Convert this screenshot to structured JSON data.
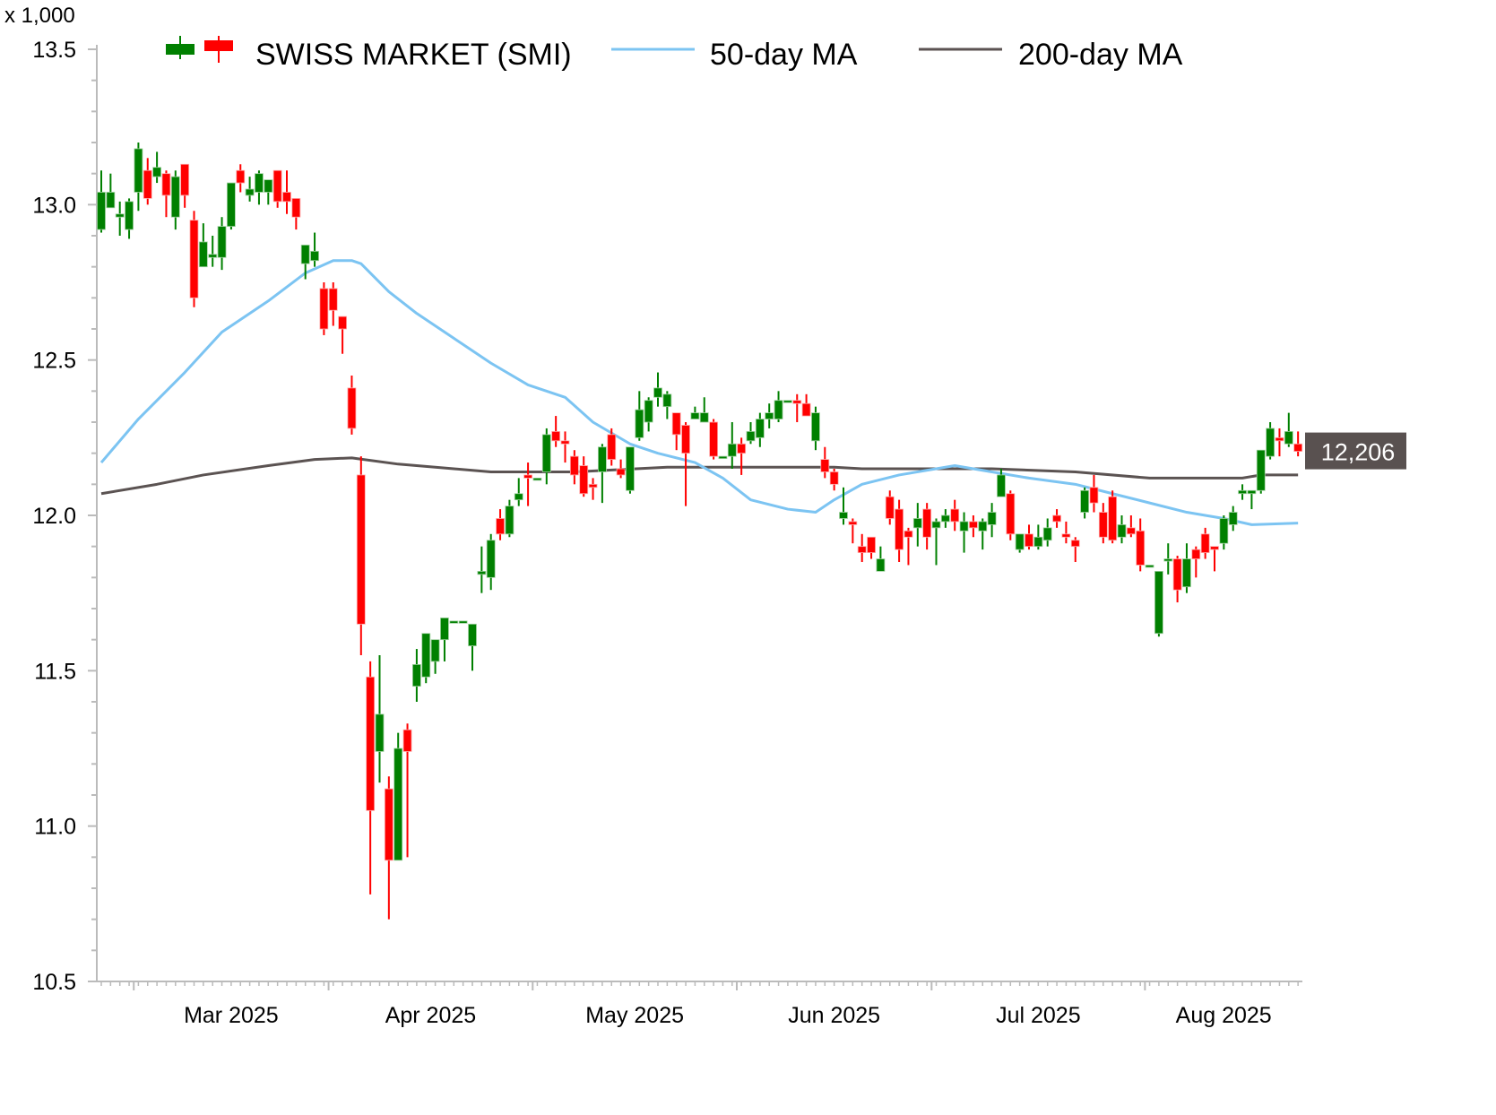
{
  "chart_data": {
    "type": "candlestick",
    "y_multiplier_label": "x 1,000",
    "ylim": [
      10.5,
      13.5
    ],
    "y_ticks": [
      "10.5",
      "11.0",
      "11.5",
      "12.0",
      "12.5",
      "13.0",
      "13.5"
    ],
    "x_tick_labels": [
      "Mar 2025",
      "Apr 2025",
      "May 2025",
      "Jun 2025",
      "Jul 2025",
      "Aug 2025"
    ],
    "grid": false,
    "legend_position": "top",
    "legend": {
      "candles": "SWISS MARKET (SMI)",
      "ma50": "50-day MA",
      "ma200": "200-day MA"
    },
    "last_price_label": "12,206",
    "colors": {
      "up": "#008000",
      "down": "#ff0000",
      "ma50": "#7cc4f2",
      "ma200": "#5b5352",
      "price_label_bg": "#595150"
    },
    "columns": [
      "date",
      "open",
      "high",
      "low",
      "close"
    ],
    "candles": [
      [
        "2025-02-25",
        12.92,
        13.11,
        12.91,
        13.04
      ],
      [
        "2025-02-26",
        12.99,
        13.1,
        12.99,
        13.04
      ],
      [
        "2025-02-27",
        12.96,
        13.01,
        12.9,
        12.97
      ],
      [
        "2025-02-28",
        12.92,
        13.02,
        12.89,
        13.01
      ],
      [
        "2025-03-03",
        13.04,
        13.2,
        12.98,
        13.18
      ],
      [
        "2025-03-04",
        13.11,
        13.15,
        13.0,
        13.02
      ],
      [
        "2025-03-05",
        13.09,
        13.17,
        13.07,
        13.12
      ],
      [
        "2025-03-06",
        13.1,
        13.11,
        12.96,
        13.03
      ],
      [
        "2025-03-07",
        12.96,
        13.11,
        12.92,
        13.09
      ],
      [
        "2025-03-10",
        13.13,
        13.13,
        12.99,
        13.03
      ],
      [
        "2025-03-11",
        12.95,
        12.98,
        12.67,
        12.7
      ],
      [
        "2025-03-12",
        12.8,
        12.94,
        12.8,
        12.88
      ],
      [
        "2025-03-13",
        12.83,
        12.9,
        12.8,
        12.84
      ],
      [
        "2025-03-14",
        12.83,
        12.96,
        12.79,
        12.93
      ],
      [
        "2025-03-17",
        12.93,
        13.07,
        12.92,
        13.07
      ],
      [
        "2025-03-18",
        13.11,
        13.13,
        13.04,
        13.07
      ],
      [
        "2025-03-19",
        13.03,
        13.09,
        13.01,
        13.05
      ],
      [
        "2025-03-20",
        13.04,
        13.11,
        13.0,
        13.1
      ],
      [
        "2025-03-21",
        13.04,
        13.08,
        13.0,
        13.08
      ],
      [
        "2025-03-24",
        13.11,
        13.11,
        12.99,
        13.01
      ],
      [
        "2025-03-25",
        13.04,
        13.11,
        12.97,
        13.01
      ],
      [
        "2025-03-26",
        13.02,
        13.02,
        12.92,
        12.96
      ],
      [
        "2025-03-27",
        12.81,
        12.87,
        12.76,
        12.87
      ],
      [
        "2025-03-28",
        12.82,
        12.91,
        12.8,
        12.85
      ],
      [
        "2025-03-31",
        12.73,
        12.75,
        12.58,
        12.6
      ],
      [
        "2025-04-01",
        12.73,
        12.75,
        12.61,
        12.66
      ],
      [
        "2025-04-02",
        12.64,
        12.64,
        12.52,
        12.6
      ],
      [
        "2025-04-03",
        12.41,
        12.45,
        12.26,
        12.28
      ],
      [
        "2025-04-04",
        12.13,
        12.19,
        11.55,
        11.65
      ],
      [
        "2025-04-07",
        11.48,
        11.53,
        10.78,
        11.05
      ],
      [
        "2025-04-08",
        11.24,
        11.55,
        11.14,
        11.36
      ],
      [
        "2025-04-09",
        11.12,
        11.16,
        10.7,
        10.89
      ],
      [
        "2025-04-10",
        10.89,
        11.3,
        10.89,
        11.25
      ],
      [
        "2025-04-11",
        11.31,
        11.33,
        10.9,
        11.24
      ],
      [
        "2025-04-14",
        11.45,
        11.57,
        11.4,
        11.52
      ],
      [
        "2025-04-15",
        11.48,
        11.62,
        11.46,
        11.62
      ],
      [
        "2025-04-16",
        11.53,
        11.6,
        11.49,
        11.6
      ],
      [
        "2025-04-17",
        11.6,
        11.67,
        11.53,
        11.67
      ],
      [
        "2025-04-18",
        11.66,
        11.66,
        11.66,
        11.66
      ],
      [
        "2025-04-21",
        11.66,
        11.66,
        11.66,
        11.66
      ],
      [
        "2025-04-22",
        11.58,
        11.65,
        11.5,
        11.65
      ],
      [
        "2025-04-23",
        11.81,
        11.9,
        11.75,
        11.82
      ],
      [
        "2025-04-24",
        11.8,
        11.94,
        11.76,
        11.92
      ],
      [
        "2025-04-25",
        11.99,
        12.02,
        11.92,
        11.94
      ],
      [
        "2025-04-28",
        11.94,
        12.05,
        11.93,
        12.03
      ],
      [
        "2025-04-29",
        12.05,
        12.12,
        12.03,
        12.07
      ],
      [
        "2025-04-30",
        12.13,
        12.17,
        12.03,
        12.12
      ],
      [
        "2025-05-01",
        12.12,
        12.12,
        12.12,
        12.12
      ],
      [
        "2025-05-02",
        12.14,
        12.28,
        12.1,
        12.26
      ],
      [
        "2025-05-05",
        12.27,
        12.32,
        12.22,
        12.24
      ],
      [
        "2025-05-06",
        12.24,
        12.27,
        12.17,
        12.23
      ],
      [
        "2025-05-07",
        12.19,
        12.21,
        12.1,
        12.13
      ],
      [
        "2025-05-08",
        12.16,
        12.19,
        12.06,
        12.07
      ],
      [
        "2025-05-09",
        12.1,
        12.12,
        12.05,
        12.09
      ],
      [
        "2025-05-12",
        12.14,
        12.23,
        12.04,
        12.22
      ],
      [
        "2025-05-13",
        12.26,
        12.28,
        12.16,
        12.18
      ],
      [
        "2025-05-14",
        12.15,
        12.18,
        12.12,
        12.13
      ],
      [
        "2025-05-15",
        12.08,
        12.22,
        12.07,
        12.22
      ],
      [
        "2025-05-16",
        12.25,
        12.4,
        12.24,
        12.34
      ],
      [
        "2025-05-19",
        12.3,
        12.38,
        12.27,
        12.37
      ],
      [
        "2025-05-20",
        12.38,
        12.46,
        12.35,
        12.41
      ],
      [
        "2025-05-21",
        12.35,
        12.4,
        12.31,
        12.39
      ],
      [
        "2025-05-22",
        12.33,
        12.33,
        12.21,
        12.26
      ],
      [
        "2025-05-23",
        12.29,
        12.3,
        12.03,
        12.2
      ],
      [
        "2025-05-26",
        12.31,
        12.35,
        12.31,
        12.33
      ],
      [
        "2025-05-27",
        12.3,
        12.38,
        12.3,
        12.33
      ],
      [
        "2025-05-28",
        12.3,
        12.31,
        12.18,
        12.19
      ],
      [
        "2025-05-29",
        12.19,
        12.19,
        12.19,
        12.19
      ],
      [
        "2025-05-30",
        12.19,
        12.3,
        12.15,
        12.23
      ],
      [
        "2025-06-02",
        12.23,
        12.25,
        12.13,
        12.2
      ],
      [
        "2025-06-03",
        12.24,
        12.3,
        12.23,
        12.27
      ],
      [
        "2025-06-04",
        12.25,
        12.33,
        12.22,
        12.31
      ],
      [
        "2025-06-05",
        12.31,
        12.36,
        12.28,
        12.33
      ],
      [
        "2025-06-06",
        12.31,
        12.4,
        12.3,
        12.37
      ],
      [
        "2025-06-09",
        12.37,
        12.37,
        12.37,
        12.37
      ],
      [
        "2025-06-10",
        12.37,
        12.39,
        12.3,
        12.36
      ],
      [
        "2025-06-11",
        12.36,
        12.39,
        12.32,
        12.32
      ],
      [
        "2025-06-12",
        12.24,
        12.35,
        12.21,
        12.33
      ],
      [
        "2025-06-13",
        12.18,
        12.22,
        12.12,
        12.14
      ],
      [
        "2025-06-16",
        12.14,
        12.15,
        12.08,
        12.1
      ],
      [
        "2025-06-17",
        11.99,
        12.09,
        11.97,
        12.01
      ],
      [
        "2025-06-18",
        11.98,
        11.99,
        11.91,
        11.97
      ],
      [
        "2025-06-19",
        11.9,
        11.94,
        11.85,
        11.88
      ],
      [
        "2025-06-20",
        11.93,
        11.93,
        11.86,
        11.88
      ],
      [
        "2025-06-23",
        11.82,
        11.9,
        11.82,
        11.86
      ],
      [
        "2025-06-24",
        12.06,
        12.08,
        11.97,
        11.99
      ],
      [
        "2025-06-25",
        12.02,
        12.05,
        11.85,
        11.89
      ],
      [
        "2025-06-26",
        11.95,
        11.96,
        11.84,
        11.93
      ],
      [
        "2025-06-27",
        11.96,
        12.04,
        11.9,
        11.99
      ],
      [
        "2025-06-30",
        12.02,
        12.04,
        11.89,
        11.93
      ],
      [
        "2025-07-01",
        11.96,
        11.99,
        11.84,
        11.98
      ],
      [
        "2025-07-02",
        11.98,
        12.02,
        11.96,
        12.0
      ],
      [
        "2025-07-03",
        12.02,
        12.05,
        11.95,
        11.98
      ],
      [
        "2025-07-04",
        11.95,
        12.01,
        11.88,
        11.98
      ],
      [
        "2025-07-07",
        11.98,
        12.0,
        11.93,
        11.96
      ],
      [
        "2025-07-08",
        11.95,
        11.99,
        11.89,
        11.98
      ],
      [
        "2025-07-09",
        11.97,
        12.04,
        11.93,
        12.01
      ],
      [
        "2025-07-10",
        12.06,
        12.15,
        12.06,
        12.13
      ],
      [
        "2025-07-11",
        12.07,
        12.08,
        11.92,
        11.94
      ],
      [
        "2025-07-14",
        11.89,
        11.94,
        11.88,
        11.94
      ],
      [
        "2025-07-15",
        11.94,
        11.97,
        11.89,
        11.9
      ],
      [
        "2025-07-16",
        11.9,
        11.97,
        11.89,
        11.93
      ],
      [
        "2025-07-17",
        11.92,
        11.99,
        11.9,
        11.96
      ],
      [
        "2025-07-18",
        12.0,
        12.02,
        11.96,
        11.98
      ],
      [
        "2025-07-21",
        11.94,
        11.98,
        11.91,
        11.93
      ],
      [
        "2025-07-22",
        11.92,
        11.93,
        11.85,
        11.9
      ],
      [
        "2025-07-23",
        12.01,
        12.09,
        11.99,
        12.08
      ],
      [
        "2025-07-24",
        12.09,
        12.13,
        12.01,
        12.04
      ],
      [
        "2025-07-25",
        12.01,
        12.04,
        11.91,
        11.93
      ],
      [
        "2025-07-28",
        12.06,
        12.08,
        11.91,
        11.92
      ],
      [
        "2025-07-29",
        11.93,
        12.0,
        11.91,
        11.97
      ],
      [
        "2025-07-30",
        11.96,
        12.0,
        11.93,
        11.94
      ],
      [
        "2025-07-31",
        11.95,
        11.99,
        11.82,
        11.84
      ],
      [
        "2025-08-01",
        11.84,
        11.84,
        11.84,
        11.84
      ],
      [
        "2025-08-04",
        11.62,
        11.82,
        11.61,
        11.82
      ],
      [
        "2025-08-05",
        11.86,
        11.91,
        11.81,
        11.86
      ],
      [
        "2025-08-06",
        11.86,
        11.87,
        11.72,
        11.76
      ],
      [
        "2025-08-07",
        11.77,
        11.91,
        11.75,
        11.86
      ],
      [
        "2025-08-08",
        11.89,
        11.9,
        11.8,
        11.86
      ],
      [
        "2025-08-11",
        11.94,
        11.96,
        11.86,
        11.88
      ],
      [
        "2025-08-12",
        11.9,
        11.9,
        11.82,
        11.89
      ],
      [
        "2025-08-13",
        11.91,
        12.0,
        11.89,
        11.99
      ],
      [
        "2025-08-14",
        11.97,
        12.03,
        11.95,
        12.01
      ],
      [
        "2025-08-15",
        12.07,
        12.1,
        12.05,
        12.08
      ],
      [
        "2025-08-18",
        12.07,
        12.08,
        12.02,
        12.08
      ],
      [
        "2025-08-19",
        12.08,
        12.21,
        12.07,
        12.21
      ],
      [
        "2025-08-20",
        12.19,
        12.3,
        12.18,
        12.28
      ],
      [
        "2025-08-21",
        12.25,
        12.28,
        12.19,
        12.24
      ],
      [
        "2025-08-22",
        12.23,
        12.33,
        12.22,
        12.27
      ],
      [
        "2025-08-25",
        12.23,
        12.27,
        12.19,
        12.206
      ]
    ],
    "ma50": [
      [
        "2025-02-25",
        12.17
      ],
      [
        "2025-03-03",
        12.31
      ],
      [
        "2025-03-10",
        12.46
      ],
      [
        "2025-03-14",
        12.59
      ],
      [
        "2025-03-21",
        12.69
      ],
      [
        "2025-03-27",
        12.78
      ],
      [
        "2025-04-01",
        12.82
      ],
      [
        "2025-04-03",
        12.82
      ],
      [
        "2025-04-04",
        12.81
      ],
      [
        "2025-04-09",
        12.72
      ],
      [
        "2025-04-14",
        12.65
      ],
      [
        "2025-04-18",
        12.57
      ],
      [
        "2025-04-24",
        12.49
      ],
      [
        "2025-04-30",
        12.42
      ],
      [
        "2025-05-06",
        12.38
      ],
      [
        "2025-05-09",
        12.3
      ],
      [
        "2025-05-15",
        12.23
      ],
      [
        "2025-05-20",
        12.2
      ],
      [
        "2025-05-26",
        12.17
      ],
      [
        "2025-05-29",
        12.12
      ],
      [
        "2025-06-03",
        12.05
      ],
      [
        "2025-06-09",
        12.02
      ],
      [
        "2025-06-12",
        12.01
      ],
      [
        "2025-06-16",
        12.05
      ],
      [
        "2025-06-19",
        12.1
      ],
      [
        "2025-06-25",
        12.13
      ],
      [
        "2025-07-03",
        12.16
      ],
      [
        "2025-07-09",
        12.14
      ],
      [
        "2025-07-15",
        12.12
      ],
      [
        "2025-07-22",
        12.1
      ],
      [
        "2025-07-28",
        12.07
      ],
      [
        "2025-08-01",
        12.04
      ],
      [
        "2025-08-07",
        12.01
      ],
      [
        "2025-08-13",
        11.99
      ],
      [
        "2025-08-18",
        11.97
      ],
      [
        "2025-08-25",
        11.975
      ]
    ],
    "ma200": [
      [
        "2025-02-25",
        12.07
      ],
      [
        "2025-03-05",
        12.1
      ],
      [
        "2025-03-12",
        12.13
      ],
      [
        "2025-03-21",
        12.16
      ],
      [
        "2025-03-28",
        12.18
      ],
      [
        "2025-04-03",
        12.185
      ],
      [
        "2025-04-10",
        12.165
      ],
      [
        "2025-04-18",
        12.15
      ],
      [
        "2025-04-24",
        12.14
      ],
      [
        "2025-05-07",
        12.14
      ],
      [
        "2025-05-21",
        12.155
      ],
      [
        "2025-06-16",
        12.155
      ],
      [
        "2025-06-19",
        12.15
      ],
      [
        "2025-07-09",
        12.15
      ],
      [
        "2025-07-22",
        12.14
      ],
      [
        "2025-08-01",
        12.12
      ],
      [
        "2025-08-15",
        12.12
      ],
      [
        "2025-08-19",
        12.13
      ],
      [
        "2025-08-25",
        12.13
      ]
    ]
  }
}
